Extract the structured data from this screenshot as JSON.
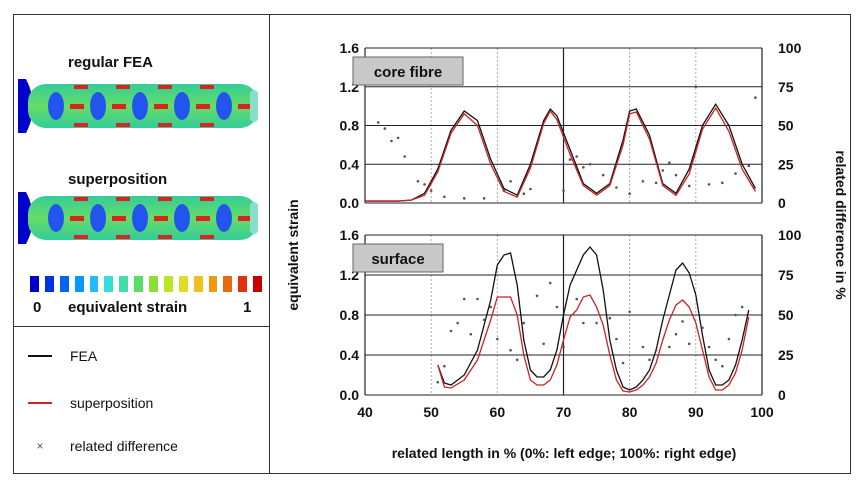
{
  "left_panel": {
    "top_label": "regular FEA",
    "bottom_label": "superposition",
    "colorbar": {
      "colors": [
        "#0000c8",
        "#0033e0",
        "#0066f0",
        "#0099ff",
        "#22bbff",
        "#33dddd",
        "#44ddaa",
        "#55dd66",
        "#88e033",
        "#bbe622",
        "#dddd22",
        "#f0c020",
        "#f09a10",
        "#e86a10",
        "#e03010",
        "#c80000"
      ],
      "min_label": "0",
      "title": "equivalent strain",
      "max_label": "1"
    },
    "legend": [
      {
        "label": "FEA",
        "color": "#111111",
        "marker": "line"
      },
      {
        "label": "superposition",
        "color": "#cc2222",
        "marker": "line"
      },
      {
        "label": "related difference",
        "color": "#555555",
        "marker": "x"
      }
    ]
  },
  "chart_data": [
    {
      "type": "line",
      "title": "core fibre",
      "xlim": [
        40,
        100
      ],
      "ylim": [
        0,
        1.6
      ],
      "y2lim": [
        0,
        100
      ],
      "yticks": [
        "0.0",
        "0.4",
        "0.8",
        "1.2",
        "1.6"
      ],
      "y2ticks": [
        "0",
        "25",
        "50",
        "75",
        "100"
      ],
      "series": [
        {
          "name": "FEA",
          "color": "#111111",
          "x": [
            40,
            45,
            47,
            49,
            51,
            53,
            55,
            57,
            59,
            61,
            63,
            65,
            67,
            68,
            69,
            71,
            73,
            75,
            77,
            79,
            80,
            81,
            83,
            85,
            87,
            89,
            91,
            93,
            95,
            97,
            99
          ],
          "y": [
            0.02,
            0.02,
            0.03,
            0.1,
            0.35,
            0.75,
            0.95,
            0.85,
            0.45,
            0.15,
            0.08,
            0.4,
            0.85,
            0.97,
            0.9,
            0.55,
            0.2,
            0.1,
            0.2,
            0.65,
            0.95,
            0.97,
            0.7,
            0.2,
            0.1,
            0.35,
            0.8,
            1.02,
            0.8,
            0.4,
            0.15
          ]
        },
        {
          "name": "superposition",
          "color": "#cc2222",
          "x": [
            40,
            45,
            47,
            49,
            51,
            53,
            55,
            57,
            59,
            61,
            63,
            65,
            67,
            68,
            69,
            71,
            73,
            75,
            77,
            79,
            80,
            81,
            83,
            85,
            87,
            89,
            91,
            93,
            95,
            97,
            99
          ],
          "y": [
            0.02,
            0.02,
            0.03,
            0.08,
            0.32,
            0.72,
            0.92,
            0.8,
            0.4,
            0.12,
            0.06,
            0.36,
            0.82,
            0.95,
            0.86,
            0.5,
            0.18,
            0.08,
            0.18,
            0.6,
            0.92,
            0.94,
            0.66,
            0.18,
            0.08,
            0.3,
            0.76,
            0.98,
            0.74,
            0.35,
            0.12
          ]
        },
        {
          "name": "related difference",
          "color": "#555555",
          "x": [
            42,
            43,
            44,
            45,
            46,
            48,
            49,
            50,
            52,
            55,
            58,
            61,
            62,
            64,
            65,
            70,
            71,
            72,
            73,
            74,
            76,
            78,
            80,
            82,
            84,
            85,
            86,
            87,
            89,
            90,
            92,
            94,
            96,
            98,
            99
          ],
          "y": [
            52,
            48,
            40,
            42,
            30,
            14,
            12,
            8,
            4,
            3,
            3,
            8,
            14,
            6,
            9,
            8,
            28,
            30,
            23,
            25,
            18,
            10,
            6,
            14,
            13,
            21,
            26,
            18,
            11,
            75,
            12,
            13,
            19,
            24,
            68
          ]
        }
      ]
    },
    {
      "type": "line",
      "title": "surface",
      "xlim": [
        40,
        100
      ],
      "ylim": [
        0,
        1.6
      ],
      "y2lim": [
        0,
        100
      ],
      "yticks": [
        "0.0",
        "0.4",
        "0.8",
        "1.2",
        "1.6"
      ],
      "y2ticks": [
        "0",
        "25",
        "50",
        "75",
        "100"
      ],
      "xticks": [
        "40",
        "50",
        "60",
        "70",
        "80",
        "90",
        "100"
      ],
      "series": [
        {
          "name": "FEA",
          "color": "#111111",
          "x": [
            51,
            52,
            53,
            55,
            57,
            59,
            60,
            61,
            62,
            63,
            64,
            65,
            66,
            67,
            68,
            69,
            70,
            71,
            72,
            73,
            74,
            75,
            76,
            77,
            78,
            79,
            80,
            81,
            82,
            83,
            84,
            85,
            86,
            87,
            88,
            89,
            90,
            91,
            92,
            93,
            94,
            95,
            96,
            97,
            98
          ],
          "y": [
            0.3,
            0.12,
            0.1,
            0.2,
            0.45,
            0.95,
            1.3,
            1.4,
            1.42,
            1.1,
            0.55,
            0.25,
            0.18,
            0.18,
            0.25,
            0.45,
            0.8,
            1.1,
            1.25,
            1.4,
            1.48,
            1.4,
            1.05,
            0.55,
            0.25,
            0.08,
            0.05,
            0.08,
            0.15,
            0.25,
            0.45,
            0.75,
            1.0,
            1.25,
            1.32,
            1.22,
            1.0,
            0.6,
            0.25,
            0.1,
            0.1,
            0.15,
            0.3,
            0.55,
            0.85
          ]
        },
        {
          "name": "superposition",
          "color": "#cc2222",
          "x": [
            51,
            52,
            53,
            55,
            57,
            59,
            60,
            61,
            62,
            63,
            64,
            65,
            66,
            67,
            68,
            69,
            70,
            71,
            72,
            73,
            74,
            75,
            76,
            77,
            78,
            79,
            80,
            81,
            82,
            83,
            84,
            85,
            86,
            87,
            88,
            89,
            90,
            91,
            92,
            93,
            94,
            95,
            96,
            97,
            98
          ],
          "y": [
            0.3,
            0.08,
            0.07,
            0.15,
            0.35,
            0.75,
            0.98,
            0.98,
            0.98,
            0.8,
            0.4,
            0.15,
            0.1,
            0.1,
            0.15,
            0.3,
            0.55,
            0.78,
            0.85,
            0.98,
            1.0,
            0.88,
            0.7,
            0.4,
            0.15,
            0.04,
            0.03,
            0.05,
            0.1,
            0.18,
            0.32,
            0.55,
            0.75,
            0.9,
            0.95,
            0.88,
            0.72,
            0.45,
            0.18,
            0.05,
            0.05,
            0.1,
            0.22,
            0.45,
            0.78
          ]
        },
        {
          "name": "related difference",
          "color": "#555555",
          "x": [
            51,
            52,
            53,
            54,
            55,
            56,
            57,
            58,
            59,
            60,
            62,
            63,
            64,
            66,
            67,
            68,
            69,
            70,
            72,
            73,
            75,
            77,
            78,
            79,
            80,
            82,
            83,
            84,
            86,
            87,
            88,
            89,
            91,
            92,
            93,
            94,
            95,
            96,
            97
          ],
          "y": [
            8,
            18,
            40,
            45,
            60,
            38,
            60,
            47,
            55,
            35,
            28,
            22,
            45,
            62,
            32,
            70,
            55,
            30,
            60,
            45,
            45,
            48,
            35,
            20,
            52,
            30,
            22,
            28,
            30,
            38,
            46,
            32,
            42,
            30,
            22,
            18,
            35,
            50,
            55
          ]
        }
      ]
    }
  ],
  "axis_labels": {
    "xlabel": "related length in % (0%: left edge; 100%: right edge)",
    "ylabel": "equivalent strain",
    "y2label": "related difference in %"
  }
}
